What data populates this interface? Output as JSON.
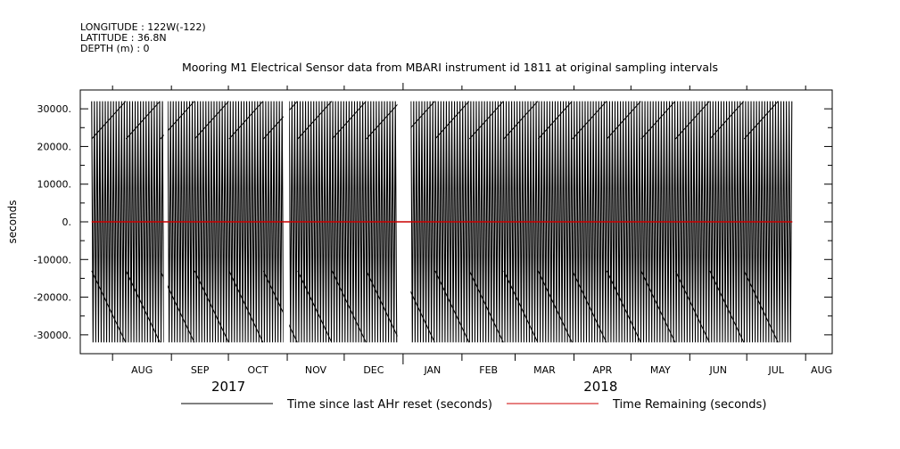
{
  "header": {
    "longitude": "LONGITUDE : 122W(-122)",
    "latitude": "LATITUDE : 36.8N",
    "depth": "DEPTH (m) : 0"
  },
  "chart_data": {
    "type": "line",
    "title": "Mooring M1 Electrical Sensor data from MBARI instrument id 1811 at original sampling intervals",
    "ylabel": "seconds",
    "xlabel": "",
    "ylim": [
      -35000,
      35000
    ],
    "yticks": [
      30000,
      20000,
      10000,
      0,
      -10000,
      -20000,
      -30000
    ],
    "ytick_labels": [
      "30000.",
      "20000.",
      "10000.",
      "0.",
      "-10000.",
      "-20000.",
      "-30000."
    ],
    "xlim": [
      "2017-07-15",
      "2018-08-15"
    ],
    "month_labels": [
      "AUG",
      "SEP",
      "OCT",
      "NOV",
      "DEC",
      "JAN",
      "FEB",
      "MAR",
      "APR",
      "MAY",
      "JUN",
      "JUL",
      "AUG"
    ],
    "year_labels": [
      "2017",
      "2018"
    ],
    "grid": false,
    "legend_position": "bottom",
    "series": [
      {
        "name": "Time since last AHr reset (seconds)",
        "color": "#000000",
        "description": "dense oscillation between about -32000 and 32000",
        "amplitude": 32000,
        "x_range": [
          "2017-07-21",
          "2018-07-25"
        ],
        "gaps": [
          [
            "2017-08-28",
            "2017-08-30"
          ],
          [
            "2017-10-30",
            "2017-11-02"
          ],
          [
            "2017-12-29",
            "2018-01-05"
          ]
        ]
      },
      {
        "name": "Time Remaining (seconds)",
        "color": "#cc0000",
        "values_constant": 0,
        "x_range": [
          "2017-07-21",
          "2018-07-25"
        ]
      }
    ]
  }
}
